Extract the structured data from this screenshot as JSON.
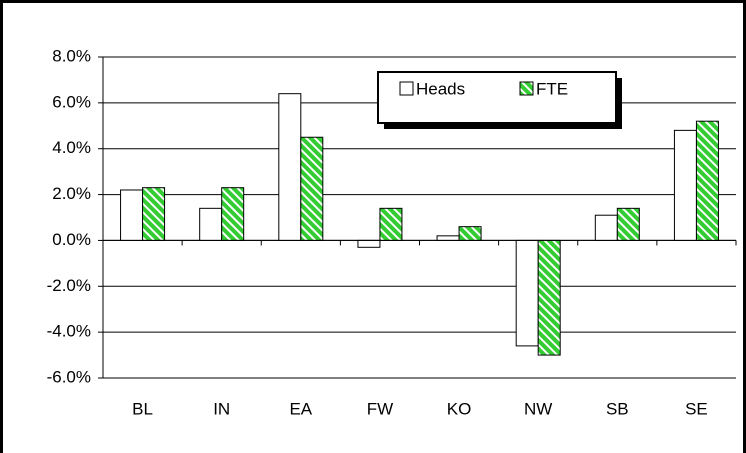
{
  "chart_data": {
    "type": "bar",
    "categories": [
      "BL",
      "IN",
      "EA",
      "FW",
      "KO",
      "NW",
      "SB",
      "SE"
    ],
    "series": [
      {
        "name": "Heads",
        "color": "#ffffff",
        "values": [
          2.2,
          1.4,
          6.4,
          -0.3,
          0.2,
          -4.6,
          1.1,
          4.8
        ]
      },
      {
        "name": "FTE",
        "color": "#33cc33",
        "values": [
          2.3,
          2.3,
          4.5,
          1.4,
          0.6,
          -5.0,
          1.4,
          5.2
        ]
      }
    ],
    "ylim": [
      -6,
      8
    ],
    "yticks": [
      {
        "value": -6,
        "label": "-6.0%"
      },
      {
        "value": -4,
        "label": "-4.0%"
      },
      {
        "value": -2,
        "label": "-2.0%"
      },
      {
        "value": 0,
        "label": "0.0%"
      },
      {
        "value": 2,
        "label": "2.0%"
      },
      {
        "value": 4,
        "label": "4.0%"
      },
      {
        "value": 6,
        "label": "6.0%"
      },
      {
        "value": 8,
        "label": "8.0%"
      }
    ],
    "grid": true
  }
}
